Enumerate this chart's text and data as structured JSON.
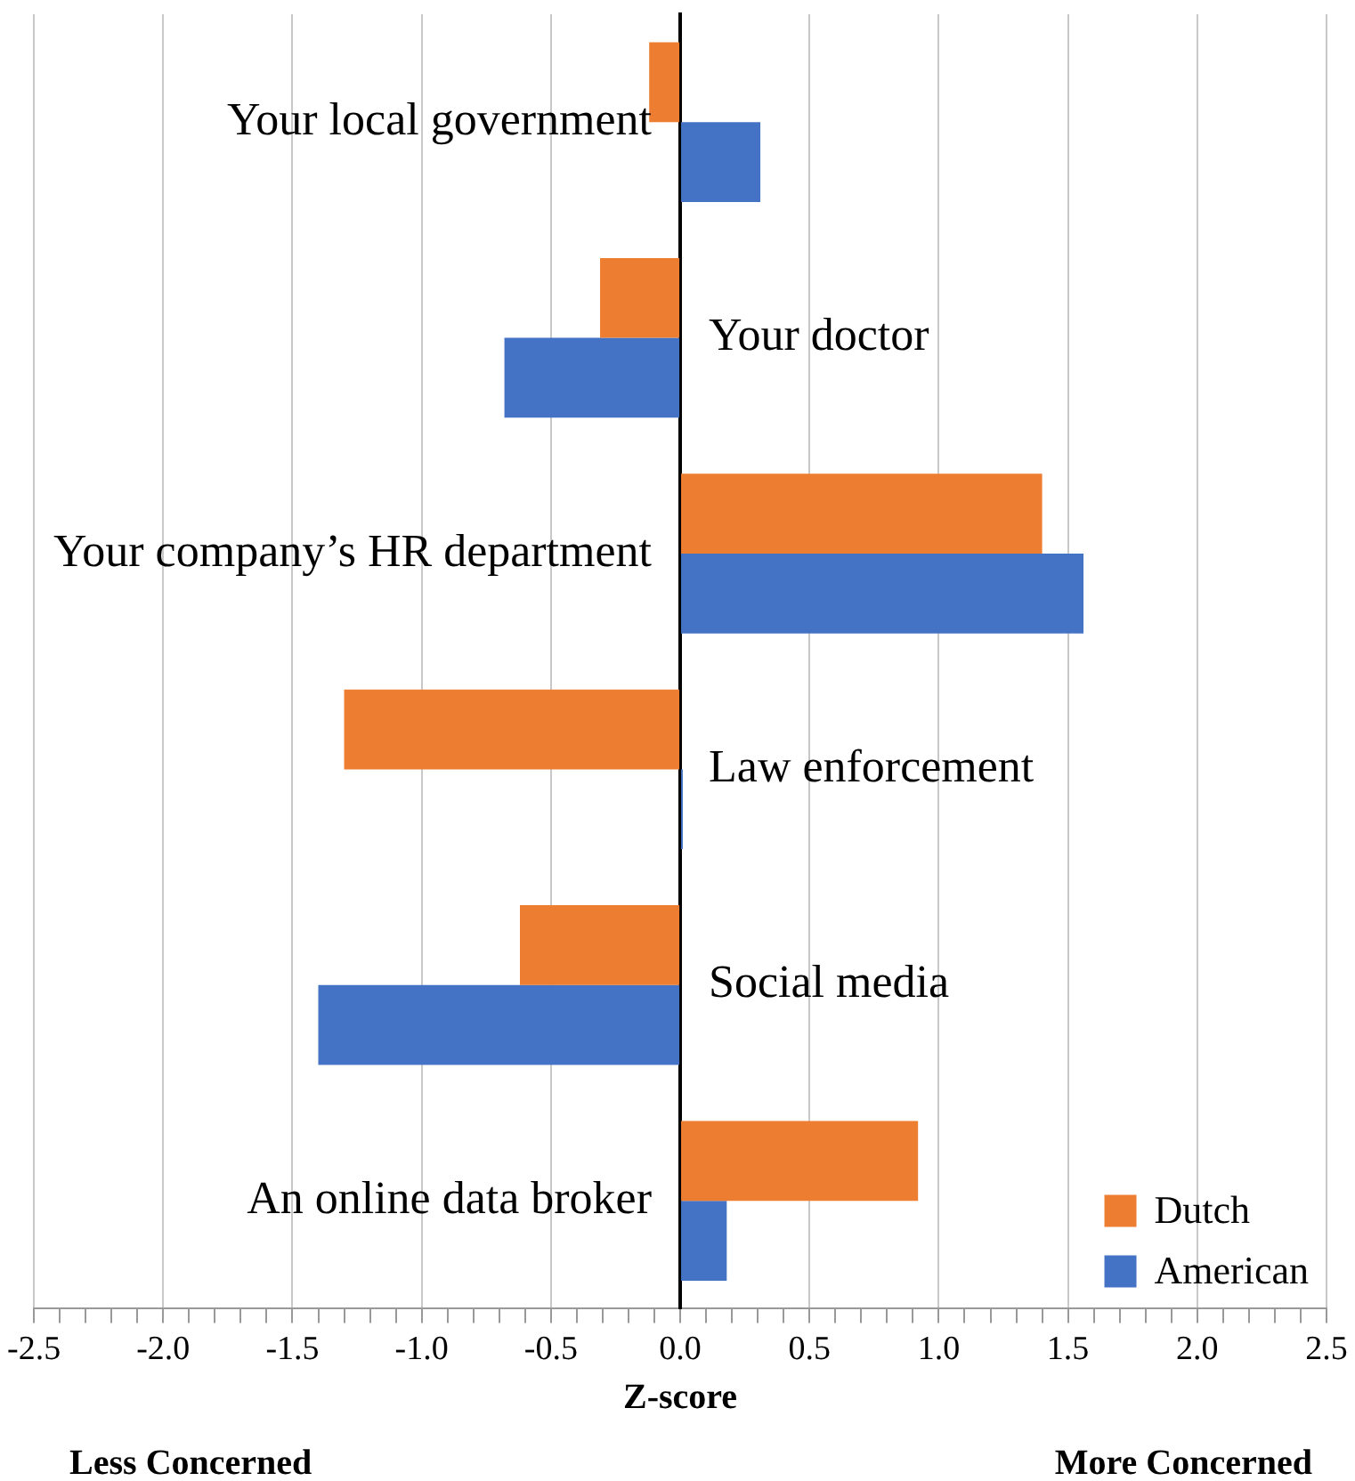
{
  "chart_data": {
    "type": "bar",
    "orientation": "horizontal",
    "xlabel": "Z-score",
    "categories": [
      "Your local government",
      "Your doctor",
      "Your company’s HR department",
      "Law enforcement",
      "Social media",
      "An online data broker"
    ],
    "series": [
      {
        "name": "Dutch",
        "color": "#ed7d31",
        "values": [
          -0.12,
          -0.31,
          1.4,
          -1.3,
          -0.62,
          0.92
        ]
      },
      {
        "name": "American",
        "color": "#4472c4",
        "values": [
          0.31,
          -0.68,
          1.56,
          0.01,
          -1.4,
          0.18
        ]
      }
    ],
    "xlim": [
      -2.5,
      2.5
    ],
    "xticks": [
      {
        "value": -2.5,
        "label": "-2.5"
      },
      {
        "value": -2.4,
        "label": null
      },
      {
        "value": -2.3,
        "label": null
      },
      {
        "value": -2.2,
        "label": null
      },
      {
        "value": -2.1,
        "label": null
      },
      {
        "value": -2.0,
        "label": "-2.0"
      },
      {
        "value": -1.9,
        "label": null
      },
      {
        "value": -1.8,
        "label": null
      },
      {
        "value": -1.7,
        "label": null
      },
      {
        "value": -1.6,
        "label": null
      },
      {
        "value": -1.5,
        "label": "-1.5"
      },
      {
        "value": -1.4,
        "label": null
      },
      {
        "value": -1.3,
        "label": null
      },
      {
        "value": -1.2,
        "label": null
      },
      {
        "value": -1.1,
        "label": null
      },
      {
        "value": -1.0,
        "label": "-1.0"
      },
      {
        "value": -0.9,
        "label": null
      },
      {
        "value": -0.8,
        "label": null
      },
      {
        "value": -0.7,
        "label": null
      },
      {
        "value": -0.6,
        "label": null
      },
      {
        "value": -0.5,
        "label": "-0.5"
      },
      {
        "value": -0.4,
        "label": null
      },
      {
        "value": -0.3,
        "label": null
      },
      {
        "value": -0.2,
        "label": null
      },
      {
        "value": -0.1,
        "label": null
      },
      {
        "value": 0,
        "label": "0.0"
      },
      {
        "value": 0.1,
        "label": null
      },
      {
        "value": 0.2,
        "label": null
      },
      {
        "value": 0.3,
        "label": null
      },
      {
        "value": 0.4,
        "label": null
      },
      {
        "value": 0.5,
        "label": "0.5"
      },
      {
        "value": 0.6,
        "label": null
      },
      {
        "value": 0.7,
        "label": null
      },
      {
        "value": 0.8,
        "label": null
      },
      {
        "value": 0.9,
        "label": null
      },
      {
        "value": 1.0,
        "label": "1.0"
      },
      {
        "value": 1.1,
        "label": null
      },
      {
        "value": 1.2,
        "label": null
      },
      {
        "value": 1.3,
        "label": null
      },
      {
        "value": 1.4,
        "label": null
      },
      {
        "value": 1.5,
        "label": "1.5"
      },
      {
        "value": 1.6,
        "label": null
      },
      {
        "value": 1.7,
        "label": null
      },
      {
        "value": 1.8,
        "label": null
      },
      {
        "value": 1.9,
        "label": null
      },
      {
        "value": 2.0,
        "label": "2.0"
      },
      {
        "value": 2.1,
        "label": null
      },
      {
        "value": 2.2,
        "label": null
      },
      {
        "value": 2.3,
        "label": null
      },
      {
        "value": 2.4,
        "label": null
      },
      {
        "value": 2.5,
        "label": "2.5"
      }
    ],
    "annotations": [
      "Less Concerned",
      "More Concerned"
    ],
    "grid": "x",
    "legend": "bottom right"
  }
}
